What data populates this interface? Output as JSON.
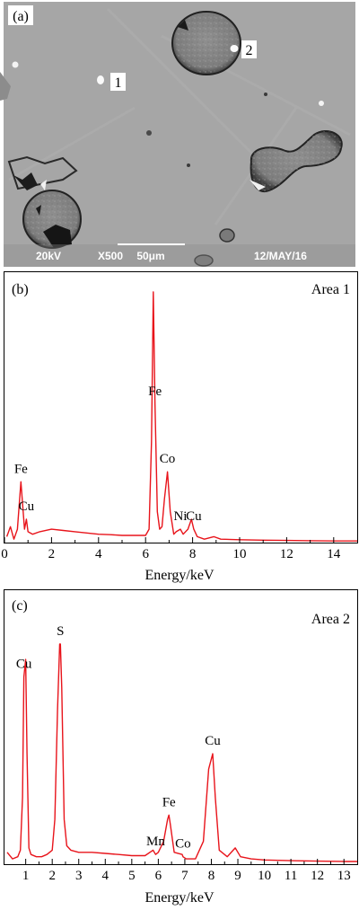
{
  "sem": {
    "panel_label": "(a)",
    "voltage": "20kV",
    "magnification": "X500",
    "scale_label": "50μm",
    "date": "12/MAY/16",
    "markers": [
      "1",
      "2"
    ]
  },
  "chart_data": [
    {
      "type": "line",
      "panel_label": "(b)",
      "area_label": "Area 1",
      "xlabel": "Energy/keV",
      "ylabel": "",
      "xlim": [
        0,
        15
      ],
      "x_ticks": [
        0,
        2,
        4,
        6,
        8,
        10,
        12,
        14
      ],
      "color": "#e8141b",
      "series": [
        {
          "x": [
            0.1,
            0.25,
            0.4,
            0.55,
            0.7,
            0.78,
            0.85,
            0.93,
            1.0,
            1.2,
            1.5,
            2.0,
            2.5,
            3.0,
            3.5,
            4.0,
            4.5,
            5.0,
            5.5,
            6.0,
            6.15,
            6.25,
            6.33,
            6.4,
            6.5,
            6.6,
            6.7,
            6.8,
            6.93,
            7.05,
            7.2,
            7.3,
            7.48,
            7.6,
            7.8,
            7.95,
            8.05,
            8.2,
            8.5,
            8.9,
            9.2,
            10,
            11,
            12,
            13,
            14,
            15
          ],
          "y": [
            0.02,
            0.06,
            0.01,
            0.05,
            0.24,
            0.14,
            0.05,
            0.09,
            0.04,
            0.03,
            0.04,
            0.05,
            0.045,
            0.04,
            0.035,
            0.03,
            0.028,
            0.025,
            0.025,
            0.025,
            0.05,
            0.4,
            1.0,
            0.55,
            0.12,
            0.05,
            0.06,
            0.17,
            0.28,
            0.12,
            0.03,
            0.04,
            0.05,
            0.03,
            0.05,
            0.09,
            0.05,
            0.02,
            0.01,
            0.02,
            0.01,
            0.008,
            0.006,
            0.005,
            0.004,
            0.003,
            0.003
          ]
        }
      ],
      "peaks": [
        {
          "label": "Fe",
          "x": 0.7
        },
        {
          "label": "Cu",
          "x": 0.93
        },
        {
          "label": "Fe",
          "x": 6.4
        },
        {
          "label": "Co",
          "x": 6.93
        },
        {
          "label": "Ni",
          "x": 7.48
        },
        {
          "label": "Cu",
          "x": 8.05
        }
      ]
    },
    {
      "type": "line",
      "panel_label": "(c)",
      "area_label": "Area 2",
      "xlabel": "Energy/keV",
      "ylabel": "",
      "xlim": [
        0.2,
        13.5
      ],
      "x_ticks": [
        1,
        2,
        3,
        4,
        5,
        6,
        7,
        8,
        9,
        10,
        11,
        12,
        13
      ],
      "color": "#e8141b",
      "series": [
        {
          "x": [
            0.3,
            0.5,
            0.7,
            0.8,
            0.88,
            0.93,
            1.0,
            1.05,
            1.12,
            1.2,
            1.4,
            1.6,
            1.8,
            2.0,
            2.1,
            2.2,
            2.28,
            2.31,
            2.36,
            2.45,
            2.55,
            2.7,
            3.0,
            3.5,
            4.0,
            4.5,
            5.0,
            5.5,
            5.8,
            5.9,
            6.0,
            6.2,
            6.35,
            6.4,
            6.45,
            6.6,
            6.9,
            6.93,
            7.05,
            7.4,
            7.7,
            7.9,
            8.05,
            8.15,
            8.3,
            8.6,
            8.9,
            9.1,
            9.5,
            10,
            11,
            12,
            13,
            13.5
          ],
          "y": [
            0.05,
            0.02,
            0.03,
            0.06,
            0.3,
            0.85,
            0.93,
            0.5,
            0.07,
            0.04,
            0.03,
            0.03,
            0.04,
            0.06,
            0.2,
            0.7,
            1.0,
            1.0,
            0.8,
            0.2,
            0.08,
            0.06,
            0.05,
            0.05,
            0.045,
            0.04,
            0.035,
            0.035,
            0.06,
            0.04,
            0.05,
            0.1,
            0.2,
            0.22,
            0.18,
            0.05,
            0.04,
            0.03,
            0.02,
            0.02,
            0.1,
            0.43,
            0.5,
            0.3,
            0.06,
            0.03,
            0.07,
            0.03,
            0.02,
            0.015,
            0.012,
            0.01,
            0.008,
            0.008
          ]
        }
      ],
      "peaks": [
        {
          "label": "Cu",
          "x": 0.93
        },
        {
          "label": "S",
          "x": 2.31
        },
        {
          "label": "Mn",
          "x": 5.9
        },
        {
          "label": "Fe",
          "x": 6.4
        },
        {
          "label": "Co",
          "x": 6.93
        },
        {
          "label": "Cu",
          "x": 8.05
        }
      ]
    }
  ]
}
